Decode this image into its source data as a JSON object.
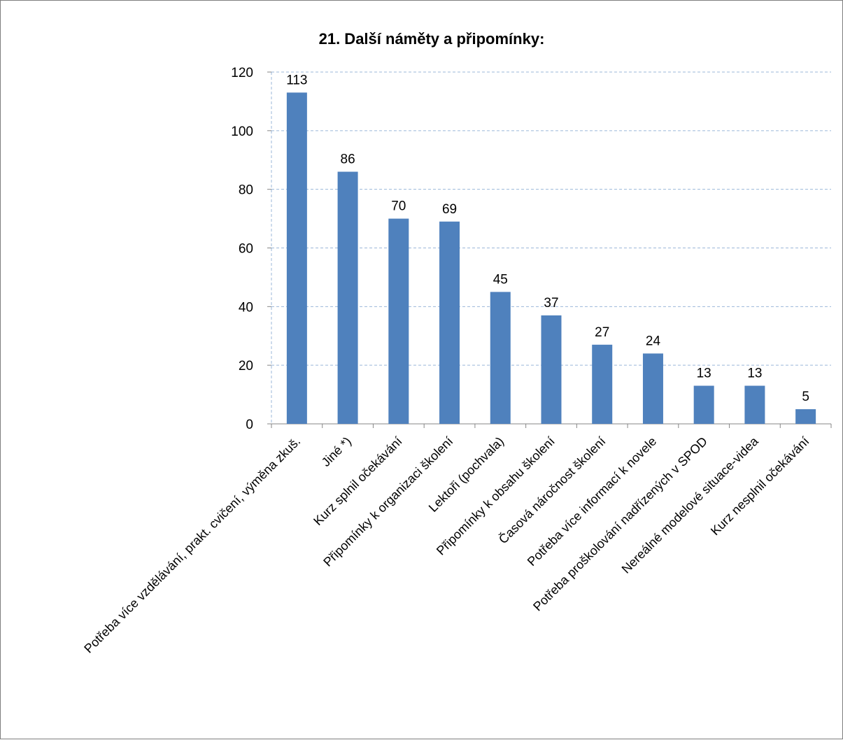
{
  "chart_data": {
    "type": "bar",
    "title": "21. Další náměty a připomínky:",
    "categories": [
      "Potřeba více vzdělávání, prakt. cvičení, výměna zkuš.",
      "Jiné *)",
      "Kurz splnil očekávání",
      "Připomínky k organizaci školení",
      "Lektoři (pochvala)",
      "Připomínky k obsahu školení",
      "Časová náročnost školení",
      "Potřeba více informací k novele",
      "Potřeba proškolování nadřízených v SPOD",
      "Nereálné modelové situace-videa",
      "Kurz nesplnil očekávání"
    ],
    "values": [
      113,
      86,
      70,
      69,
      45,
      37,
      27,
      24,
      13,
      13,
      5
    ],
    "ylim": [
      0,
      120
    ],
    "yticks": [
      "0",
      "20",
      "40",
      "60",
      "80",
      "100",
      "120"
    ],
    "grid": true,
    "bar_color": "#4f81bd",
    "grid_color": "#9bb7d9"
  }
}
